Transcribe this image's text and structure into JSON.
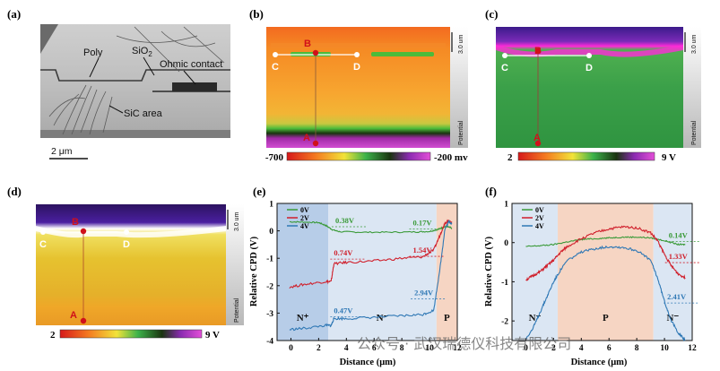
{
  "panels": {
    "a": {
      "label": "(a)",
      "poly": "Poly",
      "sio2_main": "SiO",
      "sio2_sub": "2",
      "ohmic": "Ohmic contact",
      "sic": "SiC area",
      "scale": "2 μm"
    },
    "b": {
      "label": "(b)",
      "pt_b": "B",
      "pt_c": "C",
      "pt_d": "D",
      "pt_a": "A",
      "scale": "3.0 um",
      "side": "Potential",
      "cbar_min": "-700",
      "cbar_max": "-200 mv",
      "colors": {
        "ox": "#f58a24",
        "top": "#f26c22",
        "green": "#4cbb3b",
        "magenta": "#c040c0",
        "dark": "#1a3410"
      }
    },
    "c": {
      "label": "(c)",
      "pt_b": "B",
      "pt_c": "C",
      "pt_d": "D",
      "pt_a": "A",
      "scale": "3.0 um",
      "side": "Potential",
      "cbar_min": "2",
      "cbar_max": "9 V",
      "colors": {
        "green": "#3ba049",
        "purple": "#5a2aa0",
        "magenta": "#ff2ad8"
      }
    },
    "d": {
      "label": "(d)",
      "pt_b": "B",
      "pt_c": "C",
      "pt_d": "D",
      "pt_a": "A",
      "scale": "3.0 um",
      "side": "Potential",
      "cbar_min": "2",
      "cbar_max": "9 V",
      "colors": {
        "yellow": "#e6c22f",
        "orange": "#efa728",
        "purple": "#4a1fa0"
      }
    }
  },
  "chart_data": [
    {
      "panel": "(e)",
      "type": "line",
      "xlabel": "Distance (μm)",
      "ylabel": "Relative CPD (V)",
      "xlim": [
        -1,
        12
      ],
      "ylim": [
        -4,
        1
      ],
      "xticks": [
        0,
        2,
        4,
        6,
        8,
        10,
        12
      ],
      "yticks": [
        1,
        0,
        -1,
        -2,
        -3,
        -4
      ],
      "legend": [
        "0V",
        "2V",
        "4V"
      ],
      "regions": [
        {
          "label": "N⁺",
          "x0": -1,
          "x1": 2.7,
          "color": "#b7cde8"
        },
        {
          "label": "N⁻",
          "x0": 2.7,
          "x1": 10.5,
          "color": "#dbe6f3"
        },
        {
          "label": "P",
          "x0": 10.5,
          "x1": 12,
          "color": "#f6d5c3"
        }
      ],
      "series": [
        {
          "name": "0V",
          "color": "#3a9a38",
          "x": [
            -0.1,
            1,
            2,
            2.5,
            3,
            3.5,
            5,
            7,
            9,
            10,
            10.6,
            11,
            11.3,
            11.6
          ],
          "values": [
            0.33,
            0.32,
            0.3,
            0.2,
            0.04,
            -0.03,
            -0.05,
            -0.05,
            -0.04,
            -0.02,
            0.05,
            0.14,
            0.15,
            0.1
          ]
        },
        {
          "name": "2V",
          "color": "#d01f2b",
          "x": [
            -0.1,
            1,
            2.5,
            2.9,
            3.1,
            4,
            6,
            8,
            9.5,
            10.3,
            10.8,
            11.1,
            11.4,
            11.6
          ],
          "values": [
            -2.05,
            -1.95,
            -1.85,
            -1.85,
            -1.2,
            -1.15,
            -1.1,
            -1.0,
            -0.95,
            -0.7,
            -0.1,
            0.3,
            0.35,
            0.3
          ]
        },
        {
          "name": "4V",
          "color": "#2f78b5",
          "x": [
            -0.1,
            1,
            2.5,
            2.9,
            3.1,
            4,
            6,
            8,
            9.5,
            10.3,
            10.8,
            11.1,
            11.4,
            11.6
          ],
          "values": [
            -3.6,
            -3.55,
            -3.45,
            -3.45,
            -3.2,
            -3.2,
            -3.15,
            -3.1,
            -3.05,
            -2.9,
            -1.2,
            0.05,
            0.35,
            0.25
          ]
        }
      ],
      "annotations": [
        {
          "text": "0.38V",
          "x": 3.2,
          "y": 0.28,
          "color": "#3a9a38"
        },
        {
          "text": "0.17V",
          "x": 8.8,
          "y": 0.2,
          "color": "#3a9a38"
        },
        {
          "text": "0.74V",
          "x": 3.1,
          "y": -0.9,
          "color": "#d01f2b"
        },
        {
          "text": "1.54V",
          "x": 8.8,
          "y": -0.8,
          "color": "#d01f2b"
        },
        {
          "text": "0.47V",
          "x": 3.1,
          "y": -3.0,
          "color": "#2f78b5"
        },
        {
          "text": "2.94V",
          "x": 8.9,
          "y": -2.35,
          "color": "#2f78b5"
        }
      ]
    },
    {
      "panel": "(f)",
      "type": "line",
      "xlabel": "Distance (μm)",
      "ylabel": "Relative CPD (V)",
      "xlim": [
        -1,
        12
      ],
      "ylim": [
        -2.5,
        1
      ],
      "xticks": [
        0,
        2,
        4,
        6,
        8,
        10,
        12
      ],
      "yticks": [
        1,
        0,
        -1,
        -2
      ],
      "legend": [
        "0V",
        "2V",
        "4V"
      ],
      "regions": [
        {
          "label": "N⁻",
          "x0": -1,
          "x1": 2.3,
          "color": "#dbe6f3"
        },
        {
          "label": "P",
          "x0": 2.3,
          "x1": 9.2,
          "color": "#f6d5c3"
        },
        {
          "label": "N⁻",
          "x0": 9.2,
          "x1": 12,
          "color": "#dbe6f3"
        }
      ],
      "series": [
        {
          "name": "0V",
          "color": "#3a9a38",
          "x": [
            0,
            1,
            2,
            3,
            4,
            5,
            6,
            7,
            8,
            9,
            10,
            11,
            11.5
          ],
          "values": [
            -0.1,
            -0.08,
            -0.05,
            0.02,
            0.08,
            0.1,
            0.12,
            0.14,
            0.14,
            0.12,
            0.05,
            -0.05,
            -0.05
          ]
        },
        {
          "name": "2V",
          "color": "#d01f2b",
          "x": [
            0,
            0.5,
            1,
            1.5,
            2,
            2.5,
            3,
            4,
            5,
            6,
            7,
            8,
            9,
            9.5,
            10,
            10.5,
            11,
            11.5
          ],
          "values": [
            -0.95,
            -0.85,
            -0.75,
            -0.6,
            -0.45,
            -0.25,
            -0.1,
            0.1,
            0.25,
            0.35,
            0.4,
            0.38,
            0.25,
            0.05,
            -0.3,
            -0.6,
            -0.8,
            -0.9
          ]
        },
        {
          "name": "4V",
          "color": "#2f78b5",
          "x": [
            0,
            0.5,
            1,
            1.5,
            2,
            2.5,
            3,
            4,
            5,
            6,
            7,
            8,
            9,
            9.5,
            10,
            10.5,
            11,
            11.5
          ],
          "values": [
            -2.45,
            -2.2,
            -1.8,
            -1.4,
            -1.0,
            -0.7,
            -0.45,
            -0.25,
            -0.15,
            -0.1,
            -0.12,
            -0.2,
            -0.45,
            -0.9,
            -1.5,
            -2.0,
            -2.3,
            -2.5
          ]
        }
      ],
      "annotations": [
        {
          "text": "0.14V",
          "x": 10.3,
          "y": 0.12,
          "color": "#3a9a38"
        },
        {
          "text": "1.33V",
          "x": 10.3,
          "y": -0.42,
          "color": "#d01f2b"
        },
        {
          "text": "2.41V",
          "x": 10.2,
          "y": -1.45,
          "color": "#2f78b5"
        }
      ]
    }
  ],
  "watermark": "公众号 · 武汉瑞德仪科技有限公司"
}
